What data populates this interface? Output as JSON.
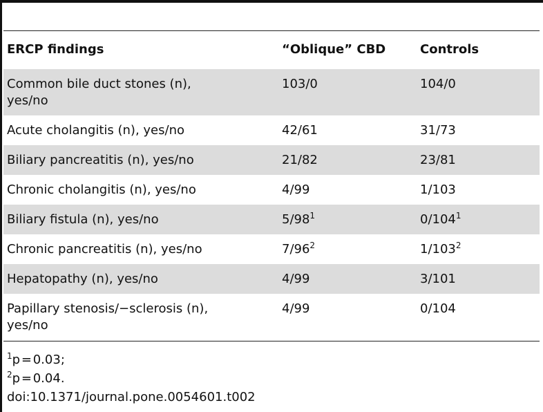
{
  "table": {
    "headers": [
      "ERCP findings",
      "“Oblique” CBD",
      "Controls"
    ],
    "rows": [
      {
        "finding": "Common bile duct stones (n), yes/no",
        "oblique": "103/0",
        "oblique_sup": "",
        "controls": "104/0",
        "controls_sup": ""
      },
      {
        "finding": "Acute cholangitis (n), yes/no",
        "oblique": "42/61",
        "oblique_sup": "",
        "controls": "31/73",
        "controls_sup": ""
      },
      {
        "finding": "Biliary pancreatitis (n), yes/no",
        "oblique": "21/82",
        "oblique_sup": "",
        "controls": "23/81",
        "controls_sup": ""
      },
      {
        "finding": "Chronic cholangitis (n), yes/no",
        "oblique": "4/99",
        "oblique_sup": "",
        "controls": "1/103",
        "controls_sup": ""
      },
      {
        "finding": "Biliary fistula (n), yes/no",
        "oblique": "5/98",
        "oblique_sup": "1",
        "controls": "0/104",
        "controls_sup": "1"
      },
      {
        "finding": "Chronic pancreatitis (n), yes/no",
        "oblique": "7/96",
        "oblique_sup": "2",
        "controls": "1/103",
        "controls_sup": "2"
      },
      {
        "finding": "Hepatopathy (n), yes/no",
        "oblique": "4/99",
        "oblique_sup": "",
        "controls": "3/101",
        "controls_sup": ""
      },
      {
        "finding": "Papillary stenosis/−sclerosis (n), yes/no",
        "oblique": "4/99",
        "oblique_sup": "",
        "controls": "0/104",
        "controls_sup": ""
      }
    ]
  },
  "footnotes": {
    "fn1_sup": "1",
    "fn1_text": "p = 0.03;",
    "fn2_sup": "2",
    "fn2_text": "p = 0.04.",
    "doi": "doi:10.1371/journal.pone.0054601.t002"
  },
  "colors": {
    "shade": "#dcdcdc",
    "rule": "#111111"
  }
}
